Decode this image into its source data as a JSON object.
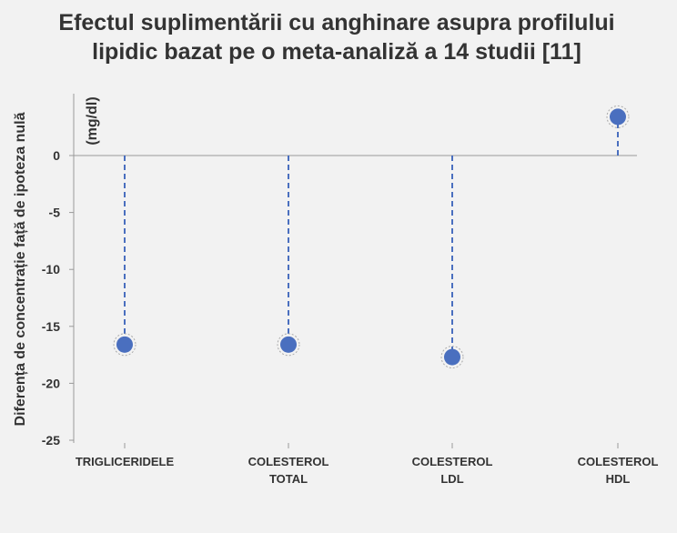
{
  "chart_data": {
    "type": "scatter",
    "title_lines": [
      "Efectul suplimentării cu anghinare asupra profilului",
      "lipidic bazat pe o meta-analiză a 14 studii [11]"
    ],
    "ylabel": "Diferența de concentrație față de ipoteza nulă",
    "unit_label": "(mg/dl)",
    "categories": [
      [
        "TRIGLICERIDELE"
      ],
      [
        "COLESTEROL",
        "TOTAL"
      ],
      [
        "COLESTEROL",
        "LDL"
      ],
      [
        "COLESTEROL",
        "HDL"
      ]
    ],
    "values": [
      -16.6,
      -16.6,
      -17.7,
      3.4
    ],
    "ylim": [
      -25,
      5
    ],
    "yticks": [
      0,
      -5,
      -10,
      -15,
      -20,
      -25
    ],
    "grid": false,
    "legend": "none",
    "colors": {
      "marker": "#4a6fbf",
      "stem": "#4a6fbf",
      "axis": "#999999",
      "halo": "#aaaaaa"
    }
  }
}
